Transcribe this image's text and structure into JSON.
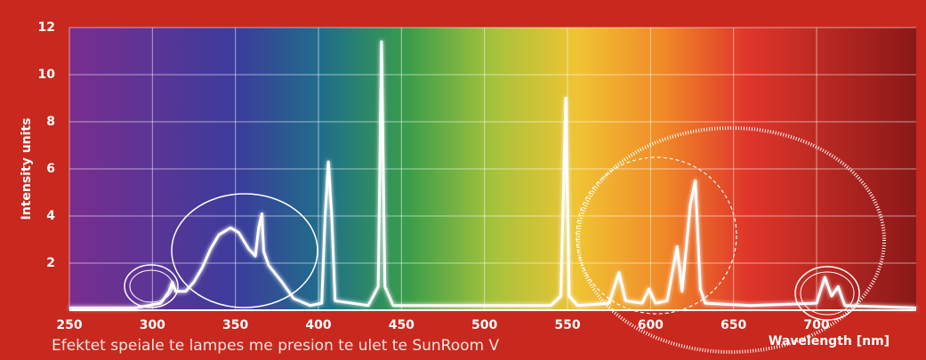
{
  "chart_data": {
    "type": "line",
    "y_label": "Intensity units",
    "x_label": "Wavelength [nm]",
    "caption": "Efektet speiale te lampes me presion te ulet te SunRoom V",
    "xlim": [
      250,
      760
    ],
    "xticks": [
      250,
      300,
      350,
      400,
      450,
      500,
      550,
      600,
      650,
      700
    ],
    "ylim": [
      0,
      12
    ],
    "yticks": [
      2,
      4,
      6,
      8,
      10,
      12
    ],
    "grid": true,
    "series": [
      {
        "color": "#ffffff",
        "x": [
          250,
          290,
          305,
          310,
          312,
          314,
          320,
          325,
          330,
          335,
          340,
          347,
          352,
          358,
          362,
          364,
          366,
          367,
          370,
          378,
          385,
          395,
          402,
          404,
          406,
          408,
          410,
          430,
          436,
          438,
          440,
          445,
          540,
          546,
          549,
          551,
          556,
          575,
          581,
          585,
          595,
          599,
          603,
          610,
          616,
          619,
          624,
          627,
          630,
          633,
          660,
          700,
          705,
          709,
          713,
          717,
          760
        ],
        "values": [
          0.1,
          0.1,
          0.3,
          0.8,
          1.2,
          0.8,
          0.8,
          1.2,
          1.8,
          2.6,
          3.2,
          3.5,
          3.3,
          2.6,
          2.3,
          3.5,
          4.1,
          2.5,
          1.9,
          1.2,
          0.5,
          0.2,
          0.3,
          4.0,
          6.3,
          4.0,
          0.4,
          0.2,
          1.0,
          11.4,
          1.0,
          0.2,
          0.2,
          0.6,
          9.0,
          0.6,
          0.2,
          0.3,
          1.6,
          0.4,
          0.3,
          0.9,
          0.3,
          0.4,
          2.7,
          0.8,
          4.5,
          5.5,
          0.9,
          0.3,
          0.2,
          0.3,
          1.4,
          0.6,
          1.0,
          0.2,
          0.1
        ]
      }
    ]
  }
}
